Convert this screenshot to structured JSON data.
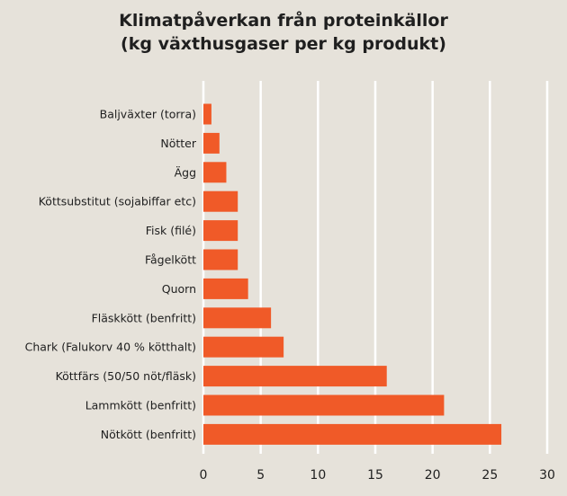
{
  "chart_data": {
    "type": "bar",
    "orientation": "horizontal",
    "title": "Klimatpåverkan från proteinkällor",
    "subtitle": "(kg växthusgaser per kg produkt)",
    "categories": [
      "Baljväxter (torra)",
      "Nötter",
      "Ägg",
      "Köttsubstitut (sojabiffar etc)",
      "Fisk (filé)",
      "Fågelkött",
      "Quorn",
      "Fläskkött (benfritt)",
      "Chark (Falukorv 40 % kötthalt)",
      "Köttfärs (50/50 nöt/fläsk)",
      "Lammkött (benfritt)",
      "Nötkött (benfritt)"
    ],
    "values": [
      0.7,
      1.4,
      2,
      3,
      3,
      3,
      3.9,
      5.9,
      7,
      16,
      21,
      26
    ],
    "xlim": [
      0,
      30
    ],
    "xticks": [
      "0",
      "5",
      "10",
      "15",
      "20",
      "25",
      "30"
    ],
    "xlabel": "",
    "ylabel": "",
    "grid": true,
    "bar_color": "#f05a28",
    "grid_color": "#ffffff",
    "background_color": "#e6e2da"
  }
}
